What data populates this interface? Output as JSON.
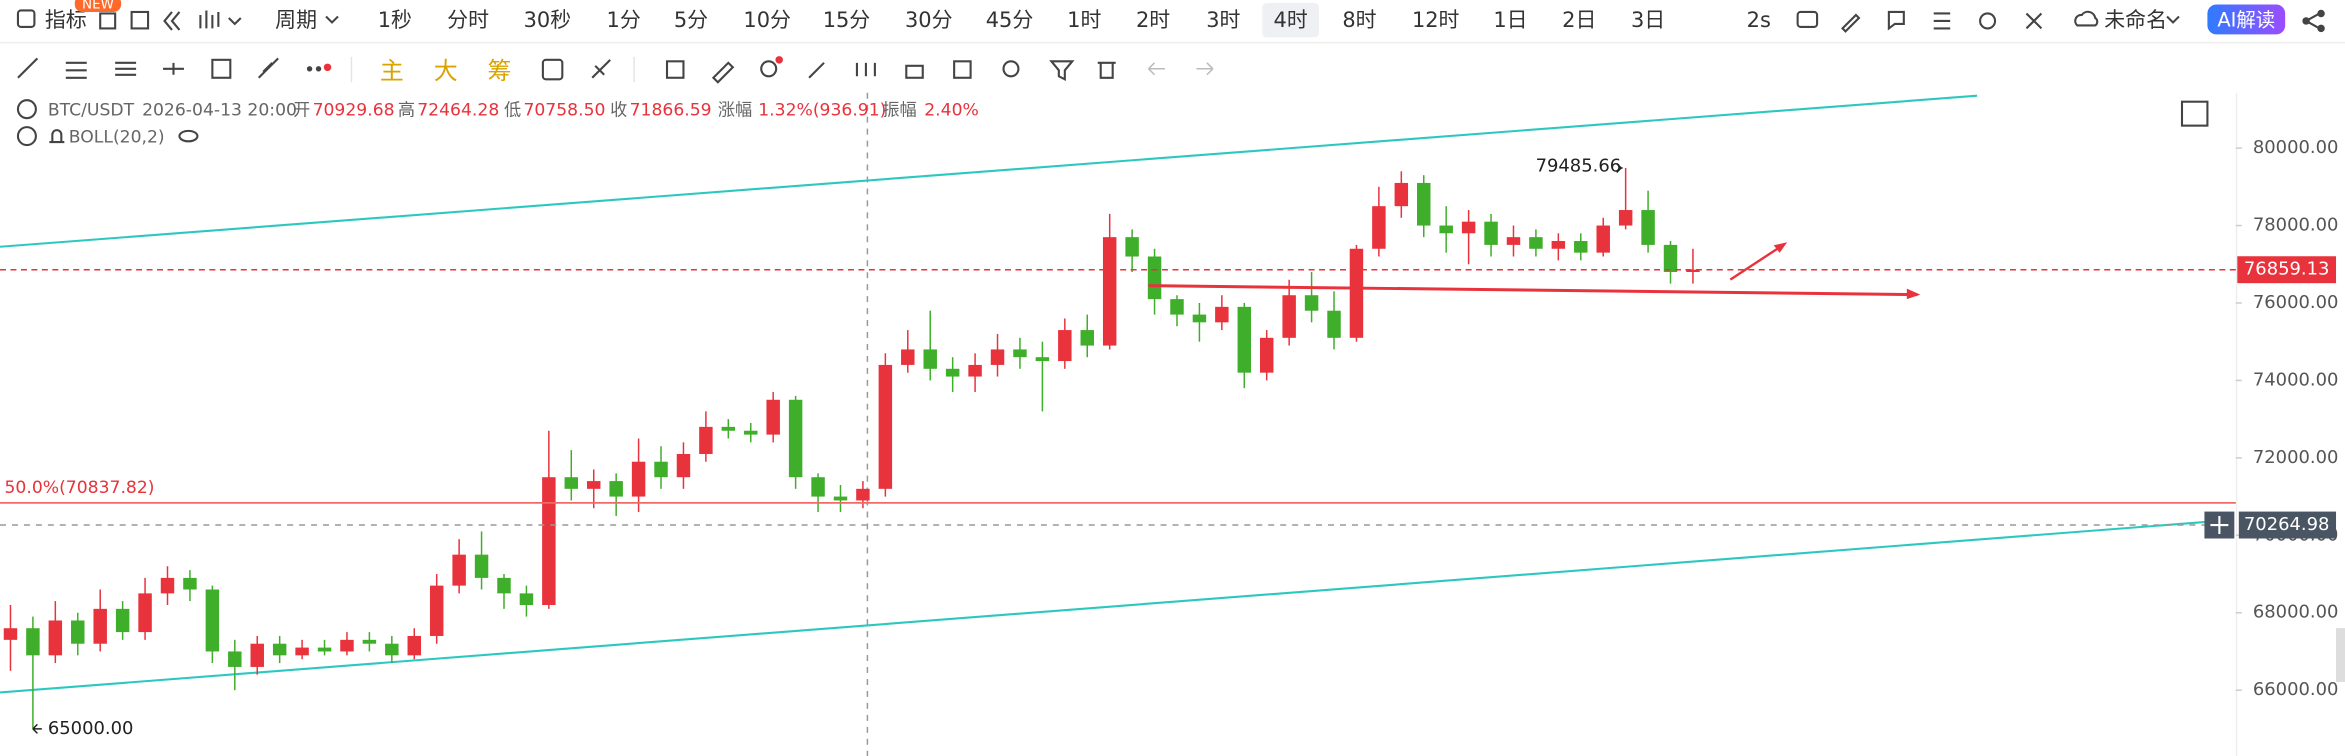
{
  "toolbar": {
    "indicator": "指标",
    "badge": "NEW",
    "period": "周期",
    "periods": [
      "1秒",
      "分时",
      "30秒",
      "1分",
      "5分",
      "10分",
      "15分",
      "30分",
      "45分",
      "1时",
      "2时",
      "3时",
      "4时",
      "8时",
      "12时",
      "1日",
      "2日",
      "3日"
    ],
    "selected": "4时",
    "refresh": "2s",
    "layout_name": "未命名",
    "ai": "AI解读",
    "drawing_modes": [
      "主",
      "大",
      "筹"
    ]
  },
  "info": {
    "symbol": "BTC/USDT",
    "time": "2026-04-13 20:00",
    "fields": [
      {
        "label": "开",
        "value": "70929.68"
      },
      {
        "label": "高",
        "value": "72464.28"
      },
      {
        "label": "低",
        "value": "70758.50"
      },
      {
        "label": "收",
        "value": "71866.59"
      },
      {
        "label": "涨幅",
        "value": "1.32%(936.91)"
      },
      {
        "label": "振幅",
        "value": "2.40%"
      }
    ],
    "indicator": "BOLL(20,2)"
  },
  "chart_data": {
    "type": "candlestick",
    "up_color": "#e8323c",
    "down_color": "#3fae2a",
    "ylim": [
      64300,
      81430
    ],
    "yticks": [
      {
        "value": 66000,
        "label": "66000.00"
      },
      {
        "value": 68000,
        "label": "68000.00"
      },
      {
        "value": 70000,
        "label": "70000.00"
      },
      {
        "value": 72000,
        "label": "72000.00"
      },
      {
        "value": 74000,
        "label": "74000.00"
      },
      {
        "value": 76000,
        "label": "76000.00"
      },
      {
        "value": 78000,
        "label": "78000.00"
      },
      {
        "value": 80000,
        "label": "80000.00"
      }
    ],
    "open": [
      67300,
      67600,
      66900,
      67800,
      67200,
      68100,
      67500,
      68500,
      68900,
      68600,
      67000,
      66600,
      67200,
      66900,
      67100,
      67000,
      67300,
      67200,
      66900,
      67400,
      68700,
      69500,
      68900,
      68500,
      68200,
      71500,
      71200,
      71400,
      71000,
      71900,
      71500,
      72100,
      72800,
      72700,
      72600,
      73500,
      71500,
      71000,
      70900,
      71200,
      74400,
      74800,
      74300,
      74100,
      74400,
      74800,
      74600,
      74500,
      75300,
      74900,
      77700,
      77200,
      76100,
      75700,
      75500,
      75900,
      74200,
      75100,
      76200,
      75800,
      75100,
      77400,
      78500,
      79100,
      78000,
      77800,
      78100,
      77500,
      77700,
      77400,
      77600,
      77300,
      78000,
      78400,
      77500,
      76800
    ],
    "high": [
      68200,
      67900,
      68300,
      68000,
      68600,
      68300,
      68900,
      69200,
      69100,
      68700,
      67300,
      67400,
      67400,
      67300,
      67300,
      67500,
      67500,
      67400,
      67600,
      69000,
      69900,
      70100,
      69000,
      68700,
      72700,
      72200,
      71700,
      71600,
      72500,
      72300,
      72400,
      73200,
      73000,
      72900,
      73700,
      73600,
      71600,
      71300,
      71400,
      74700,
      75300,
      75800,
      74600,
      74700,
      75200,
      75100,
      75000,
      75600,
      75700,
      78300,
      77900,
      77400,
      76200,
      76000,
      76200,
      76000,
      75300,
      76600,
      76800,
      76300,
      77500,
      79000,
      79400,
      79300,
      78500,
      78400,
      78300,
      78000,
      77900,
      77800,
      77800,
      78200,
      79485.66,
      78900,
      77600,
      77400
    ],
    "low": [
      66500,
      65000,
      66700,
      66900,
      67000,
      67300,
      67300,
      68200,
      68300,
      66700,
      66000,
      66400,
      66700,
      66800,
      66900,
      66900,
      67000,
      66700,
      66800,
      67200,
      68500,
      68600,
      68100,
      67900,
      68100,
      70900,
      70700,
      70500,
      70600,
      71200,
      71200,
      71900,
      72500,
      72400,
      72400,
      71200,
      70600,
      70600,
      70700,
      71000,
      74200,
      74000,
      73700,
      73700,
      74100,
      74300,
      73200,
      74300,
      74600,
      74800,
      76800,
      75700,
      75400,
      75000,
      75300,
      73800,
      74000,
      74900,
      75500,
      74800,
      75000,
      77200,
      78200,
      77700,
      77300,
      77000,
      77200,
      77200,
      77200,
      77100,
      77100,
      77200,
      77900,
      77300,
      76500,
      76500
    ],
    "close": [
      67600,
      66900,
      67800,
      67200,
      68100,
      67500,
      68500,
      68900,
      68600,
      67000,
      66600,
      67200,
      66900,
      67100,
      67000,
      67300,
      67200,
      66900,
      67400,
      68700,
      69500,
      68900,
      68500,
      68200,
      71500,
      71200,
      71400,
      71000,
      71900,
      71500,
      72100,
      72800,
      72700,
      72600,
      73500,
      71500,
      71000,
      70900,
      71200,
      74400,
      74800,
      74300,
      74100,
      74400,
      74800,
      74600,
      74500,
      75300,
      74900,
      77700,
      77200,
      76100,
      75700,
      75500,
      75900,
      74200,
      75100,
      76200,
      75800,
      75100,
      77400,
      78500,
      79100,
      78000,
      77800,
      78100,
      77500,
      77700,
      77400,
      77600,
      77300,
      78000,
      78400,
      77500,
      76800,
      76859.13
    ],
    "max_marker": 79485.66,
    "min_marker": {
      "value": 65000,
      "label": "65000.00"
    },
    "fib_line": {
      "label": "50.0%(70837.82)",
      "value": 70837.82
    },
    "last_price": 76859.13,
    "crosshair_price": 70264.98
  }
}
